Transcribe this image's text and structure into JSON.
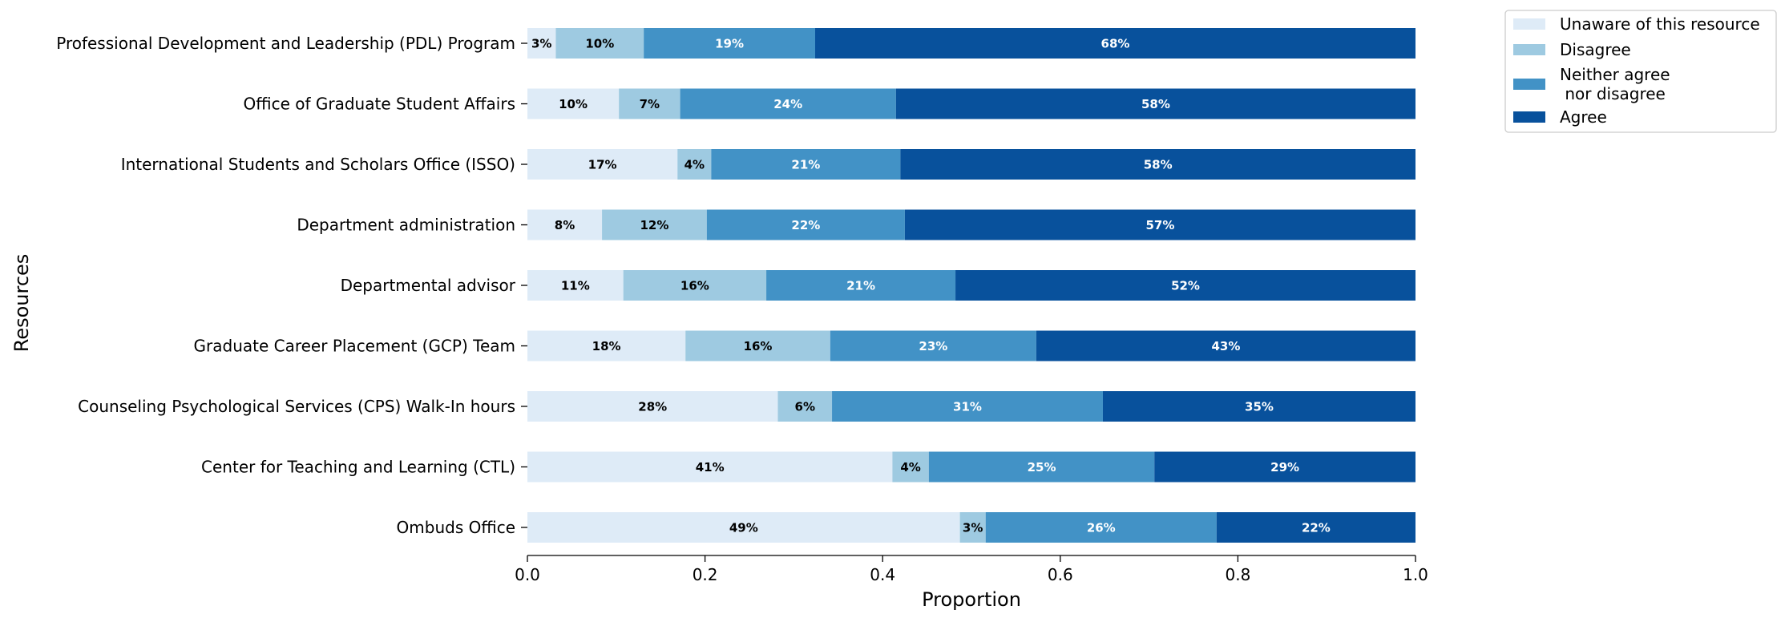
{
  "chart_data": {
    "type": "bar",
    "orientation": "horizontal",
    "stacked": true,
    "title": "",
    "xlabel": "Proportion",
    "ylabel": "Resources",
    "xlim": [
      0,
      1
    ],
    "xticks": [
      "0.0",
      "0.2",
      "0.4",
      "0.6",
      "0.8",
      "1.0"
    ],
    "grid": false,
    "legend_position": "top-right outside",
    "categories": [
      "Professional Development and Leadership (PDL) Program",
      "Office of Graduate Student Affairs",
      "International Students and Scholars Office (ISSO)",
      "Department administration",
      "Departmental advisor",
      "Graduate Career Placement (GCP) Team",
      "Counseling Psychological Services (CPS) Walk-In hours",
      "Center for Teaching and Learning (CTL)",
      "Ombuds Office"
    ],
    "series": [
      {
        "name": "Unaware of this resource",
        "color": "#deebf7",
        "values": [
          0.032,
          0.103,
          0.169,
          0.084,
          0.108,
          0.178,
          0.282,
          0.411,
          0.487
        ],
        "labels": [
          "3%",
          "10%",
          "17%",
          "8%",
          "11%",
          "18%",
          "28%",
          "41%",
          "49%"
        ]
      },
      {
        "name": "Disagree",
        "color": "#9ecae1",
        "values": [
          0.099,
          0.069,
          0.038,
          0.118,
          0.161,
          0.163,
          0.061,
          0.041,
          0.029
        ],
        "labels": [
          "10%",
          "7%",
          "4%",
          "12%",
          "16%",
          "16%",
          "6%",
          "4%",
          "3%"
        ]
      },
      {
        "name": "Neither agree\n nor disagree",
        "color": "#4292c6",
        "values": [
          0.193,
          0.243,
          0.213,
          0.223,
          0.213,
          0.232,
          0.305,
          0.254,
          0.26
        ],
        "labels": [
          "19%",
          "24%",
          "21%",
          "22%",
          "21%",
          "23%",
          "31%",
          "25%",
          "26%"
        ]
      },
      {
        "name": "Agree",
        "color": "#08519c",
        "values": [
          0.676,
          0.585,
          0.58,
          0.575,
          0.518,
          0.427,
          0.352,
          0.294,
          0.224
        ],
        "labels": [
          "68%",
          "58%",
          "58%",
          "57%",
          "52%",
          "43%",
          "35%",
          "29%",
          "22%"
        ]
      }
    ]
  }
}
